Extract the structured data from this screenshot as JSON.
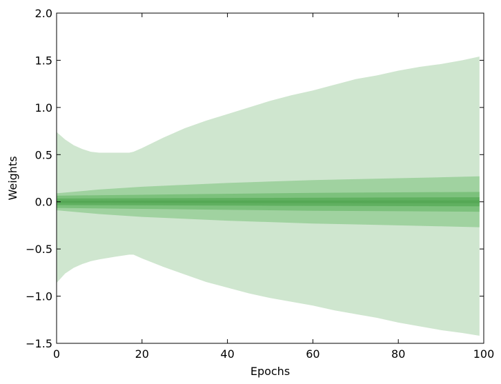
{
  "chart_data": {
    "type": "area",
    "title": "",
    "xlabel": "Epochs",
    "ylabel": "Weights",
    "xlim": [
      0,
      100
    ],
    "ylim": [
      -1.5,
      2.0
    ],
    "xticks": [
      0,
      20,
      40,
      60,
      80,
      100
    ],
    "yticks": [
      -1.5,
      -1.0,
      -0.5,
      0.0,
      0.5,
      1.0,
      1.5,
      2.0
    ],
    "ytick_labels": [
      "−1.5",
      "−1.0",
      "−0.5",
      "0.0",
      "0.5",
      "1.0",
      "1.5",
      "2.0"
    ],
    "xtick_labels": [
      "0",
      "20",
      "40",
      "60",
      "80",
      "100"
    ],
    "grid": false,
    "legend": "none",
    "bands": [
      {
        "color": "#cfe6cf",
        "x": [
          0,
          2,
          4,
          6,
          8,
          10,
          14,
          17,
          18,
          20,
          25,
          30,
          35,
          40,
          45,
          50,
          55,
          60,
          65,
          70,
          75,
          80,
          85,
          90,
          95,
          99
        ],
        "upper": [
          0.74,
          0.66,
          0.6,
          0.56,
          0.53,
          0.52,
          0.52,
          0.52,
          0.53,
          0.57,
          0.68,
          0.78,
          0.86,
          0.93,
          1.0,
          1.07,
          1.13,
          1.18,
          1.24,
          1.3,
          1.34,
          1.39,
          1.43,
          1.46,
          1.5,
          1.54
        ],
        "lower": [
          -0.86,
          -0.76,
          -0.7,
          -0.66,
          -0.63,
          -0.61,
          -0.58,
          -0.56,
          -0.56,
          -0.6,
          -0.69,
          -0.77,
          -0.85,
          -0.91,
          -0.97,
          -1.02,
          -1.06,
          -1.1,
          -1.15,
          -1.19,
          -1.23,
          -1.28,
          -1.32,
          -1.36,
          -1.39,
          -1.42
        ]
      },
      {
        "color": "#a0d2a0",
        "x": [
          0,
          10,
          20,
          30,
          40,
          50,
          60,
          70,
          80,
          90,
          99
        ],
        "upper": [
          0.09,
          0.13,
          0.16,
          0.18,
          0.2,
          0.215,
          0.23,
          0.24,
          0.25,
          0.26,
          0.27
        ],
        "lower": [
          -0.09,
          -0.13,
          -0.16,
          -0.18,
          -0.2,
          -0.215,
          -0.23,
          -0.24,
          -0.25,
          -0.26,
          -0.27
        ]
      },
      {
        "color": "#7cc17c",
        "x": [
          0,
          20,
          40,
          60,
          80,
          99
        ],
        "upper": [
          0.065,
          0.075,
          0.085,
          0.095,
          0.1,
          0.105
        ],
        "lower": [
          -0.065,
          -0.075,
          -0.085,
          -0.095,
          -0.1,
          -0.105
        ]
      },
      {
        "color": "#60b060",
        "x": [
          0,
          50,
          99
        ],
        "upper": [
          0.035,
          0.042,
          0.048
        ],
        "lower": [
          -0.035,
          -0.042,
          -0.048
        ]
      },
      {
        "color": "#55a855",
        "x": [
          0,
          50,
          99
        ],
        "upper": [
          0.012,
          0.014,
          0.015
        ],
        "lower": [
          -0.012,
          -0.014,
          -0.015
        ]
      }
    ]
  }
}
